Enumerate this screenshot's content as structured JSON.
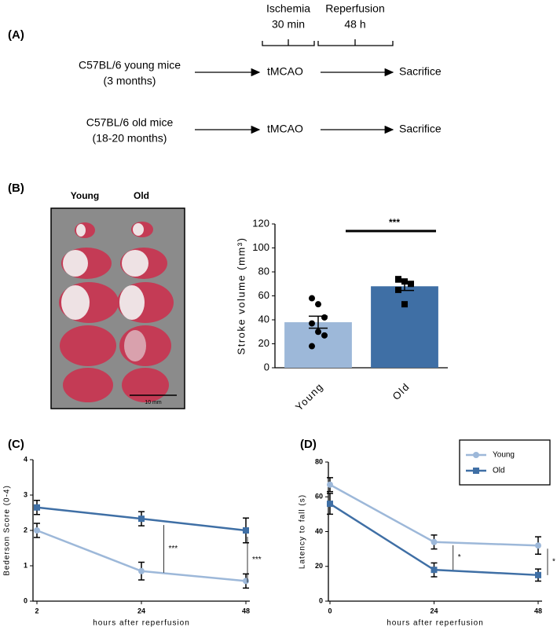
{
  "panel_labels": [
    "(A)",
    "(B)",
    "(C)",
    "(D)"
  ],
  "diagram": {
    "phases": [
      {
        "name": "Ischemia",
        "duration": "30 min"
      },
      {
        "name": "Reperfusion",
        "duration": "48 h"
      }
    ],
    "rows": [
      {
        "group": "C57BL/6 young mice",
        "age": "(3 months)",
        "procedure": "tMCAO",
        "outcome": "Sacrifice"
      },
      {
        "group": "C57BL/6 old mice",
        "age": "(18-20 months)",
        "procedure": "tMCAO",
        "outcome": "Sacrifice"
      }
    ]
  },
  "photo": {
    "columns": [
      "Young",
      "Old"
    ],
    "scale_bar": "10 mm"
  },
  "chart_data": [
    {
      "type": "bar",
      "ylabel": "Stroke volume (mm³)",
      "categories": [
        "Young",
        "Old"
      ],
      "values": [
        38,
        68
      ],
      "errors": [
        5,
        3.5
      ],
      "points": [
        [
          58,
          53,
          42,
          37,
          30,
          27,
          18
        ],
        [
          74,
          72,
          70,
          65,
          53
        ]
      ],
      "colors": [
        "#9db8d9",
        "#3f6fa5"
      ],
      "ylim": [
        0,
        120
      ],
      "yticks": [
        0,
        20,
        40,
        60,
        80,
        100,
        120
      ],
      "annotations": [
        "***"
      ]
    },
    {
      "type": "line",
      "xlabel": "hours after reperfusion",
      "ylabel": "Bederson Score (0-4)",
      "categories": [
        "2",
        "24",
        "48"
      ],
      "ylim": [
        0,
        4
      ],
      "yticks": [
        0,
        1,
        2,
        3,
        4
      ],
      "series": [
        {
          "color": "#9db8d9",
          "marker": "circle",
          "values": [
            2.0,
            0.85,
            0.57
          ],
          "errors": [
            0.2,
            0.25,
            0.2
          ]
        },
        {
          "color": "#3f6fa5",
          "marker": "square",
          "values": [
            2.65,
            2.33,
            2.0
          ],
          "errors": [
            0.2,
            0.2,
            0.35
          ]
        }
      ],
      "annotations": [
        "***",
        "***"
      ]
    },
    {
      "type": "line",
      "xlabel": "hours after reperfusion",
      "ylabel": "Latency to fall (s)",
      "x": [
        0,
        24,
        48
      ],
      "xlim": [
        0,
        48
      ],
      "xticks": [
        0,
        24,
        48
      ],
      "ylim": [
        0,
        80
      ],
      "yticks": [
        0,
        20,
        40,
        60,
        80
      ],
      "legend": "upper right",
      "series": [
        {
          "name": "Young",
          "color": "#9db8d9",
          "marker": "circle",
          "values": [
            67,
            34,
            32
          ],
          "errors": [
            4,
            4,
            5
          ]
        },
        {
          "name": "Old",
          "color": "#3f6fa5",
          "marker": "square",
          "values": [
            56,
            18,
            15
          ],
          "errors": [
            6,
            4,
            3.5
          ]
        }
      ],
      "annotations": [
        "*",
        "*"
      ]
    }
  ]
}
